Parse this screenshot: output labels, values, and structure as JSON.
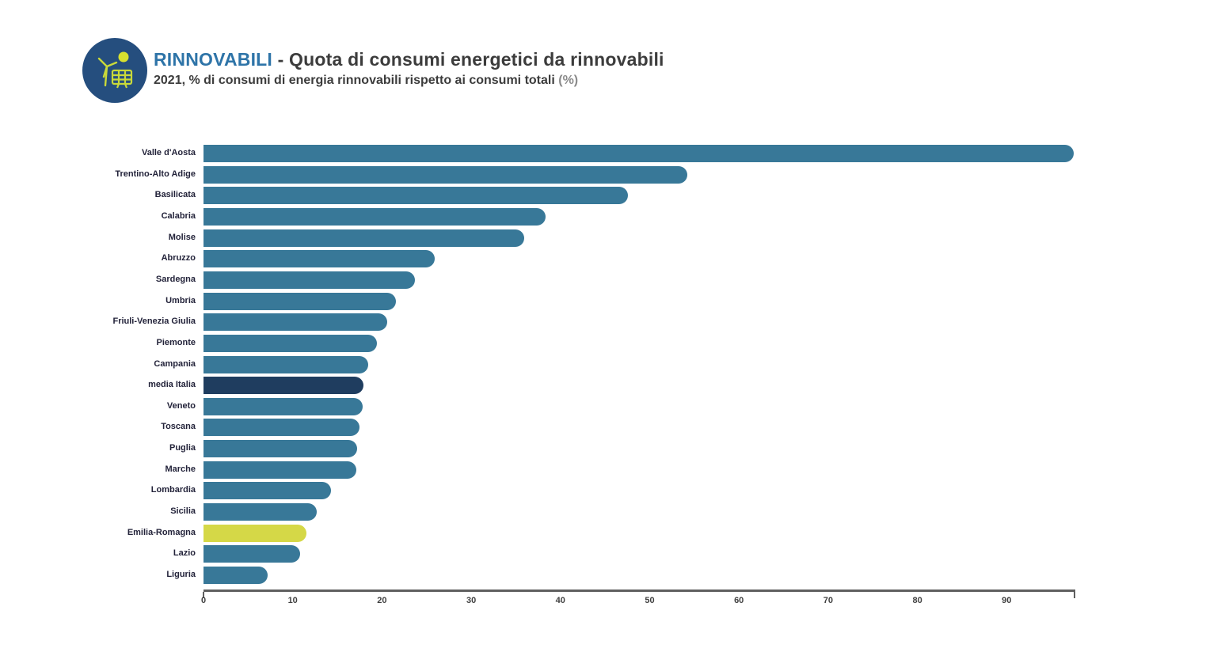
{
  "header": {
    "title_highlight": "RINNOVABILI",
    "title_rest": " - Quota di consumi energetici da rinnovabili",
    "subtitle_main": "2021, % di consumi di energia rinnovabili rispetto ai consumi totali",
    "subtitle_unit": "(%)",
    "icon": "wind-turbine-solar-panel-icon"
  },
  "colors": {
    "title_accent": "#2e74a8",
    "text_dark": "#3c3c3c",
    "bar_default": "#387898",
    "bar_media_italia": "#1f3d5f",
    "bar_emilia_romagna": "#d5d847",
    "icon_background": "#254e7e",
    "icon_glyph": "#c9d93a",
    "axis_line": "#5f5f5f"
  },
  "chart_data": {
    "type": "bar",
    "orientation": "horizontal",
    "title": "RINNOVABILI - Quota di consumi energetici da rinnovabili",
    "subtitle": "2021, % di consumi di energia rinnovabili rispetto ai consumi totali (%)",
    "xlabel": "",
    "ylabel": "",
    "xlim": [
      0,
      97.5
    ],
    "x_ticks": [
      0,
      10,
      20,
      30,
      40,
      50,
      60,
      70,
      80,
      90
    ],
    "grid": false,
    "legend": false,
    "categories": [
      "Valle d'Aosta",
      "Trentino-Alto Adige",
      "Basilicata",
      "Calabria",
      "Molise",
      "Abruzzo",
      "Sardegna",
      "Umbria",
      "Friuli-Venezia Giulia",
      "Piemonte",
      "Campania",
      "media Italia",
      "Veneto",
      "Toscana",
      "Puglia",
      "Marche",
      "Lombardia",
      "Sicilia",
      "Emilia-Romagna",
      "Lazio",
      "Liguria"
    ],
    "values": [
      97.5,
      54.2,
      47.6,
      38.3,
      35.9,
      25.9,
      23.7,
      21.6,
      20.6,
      19.4,
      18.5,
      17.9,
      17.8,
      17.5,
      17.2,
      17.1,
      14.3,
      12.7,
      11.5,
      10.8,
      7.2
    ],
    "highlighted_bars": {
      "media Italia": "#1f3d5f",
      "Emilia-Romagna": "#d5d847"
    }
  }
}
